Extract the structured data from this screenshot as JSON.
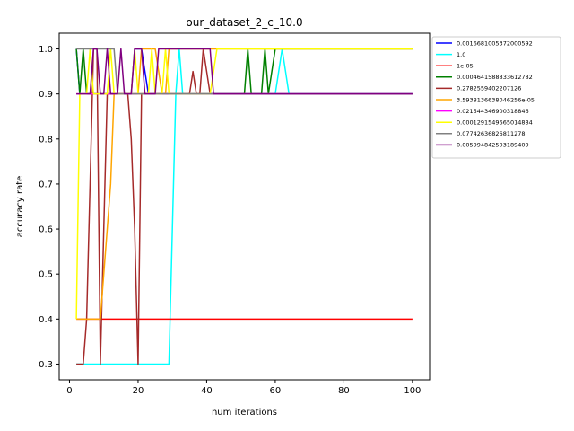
{
  "chart_data": {
    "type": "line",
    "title": "our_dataset_2_c_10.0",
    "xlabel": "num iterations",
    "ylabel": "accuracy rate",
    "xlim": [
      -3,
      105
    ],
    "ylim": [
      0.265,
      1.035
    ],
    "xticks": [
      0,
      20,
      40,
      60,
      80,
      100
    ],
    "yticks": [
      0.3,
      0.4,
      0.5,
      0.6,
      0.7,
      0.8,
      0.9,
      1.0
    ],
    "xtick_labels": [
      "0",
      "20",
      "40",
      "60",
      "80",
      "100"
    ],
    "ytick_labels": [
      "0.3",
      "0.4",
      "0.5",
      "0.6",
      "0.7",
      "0.8",
      "0.9",
      "1.0"
    ],
    "grid": false,
    "legend_position": "outside-right-top",
    "series": [
      {
        "name": "0.0016681005372000592",
        "color": "#0000ff",
        "points": [
          [
            2,
            1.0
          ],
          [
            3,
            0.9
          ],
          [
            4,
            0.9
          ],
          [
            5,
            0.9
          ],
          [
            6,
            0.9
          ],
          [
            7,
            0.9
          ],
          [
            8,
            0.9
          ],
          [
            9,
            0.9
          ],
          [
            10,
            0.9
          ],
          [
            11,
            0.9
          ],
          [
            12,
            0.9
          ],
          [
            13,
            0.9
          ],
          [
            14,
            0.9
          ],
          [
            15,
            0.9
          ],
          [
            16,
            0.9
          ],
          [
            17,
            0.9
          ],
          [
            18,
            0.9
          ],
          [
            19,
            1.0
          ],
          [
            20,
            1.0
          ],
          [
            21,
            1.0
          ],
          [
            22,
            0.95
          ],
          [
            23,
            0.9
          ],
          [
            24,
            0.9
          ],
          [
            25,
            0.9
          ],
          [
            26,
            0.9
          ],
          [
            27,
            0.9
          ],
          [
            28,
            0.9
          ],
          [
            29,
            0.9
          ],
          [
            30,
            0.9
          ],
          [
            35,
            0.9
          ],
          [
            40,
            0.9
          ],
          [
            45,
            0.9
          ],
          [
            50,
            0.9
          ],
          [
            60,
            0.9
          ],
          [
            70,
            0.9
          ],
          [
            80,
            0.9
          ],
          [
            90,
            0.9
          ],
          [
            100,
            0.9
          ]
        ]
      },
      {
        "name": "1.0",
        "color": "#00ffff",
        "points": [
          [
            2,
            0.3
          ],
          [
            3,
            0.3
          ],
          [
            5,
            0.3
          ],
          [
            10,
            0.3
          ],
          [
            15,
            0.3
          ],
          [
            20,
            0.3
          ],
          [
            25,
            0.3
          ],
          [
            29,
            0.3
          ],
          [
            30,
            0.6
          ],
          [
            31,
            0.9
          ],
          [
            32,
            1.0
          ],
          [
            33,
            0.9
          ],
          [
            34,
            0.9
          ],
          [
            40,
            0.9
          ],
          [
            45,
            0.9
          ],
          [
            50,
            0.9
          ],
          [
            55,
            0.9
          ],
          [
            60,
            0.9
          ],
          [
            61,
            0.95
          ],
          [
            62,
            1.0
          ],
          [
            63,
            0.95
          ],
          [
            64,
            0.9
          ],
          [
            70,
            0.9
          ],
          [
            80,
            0.9
          ],
          [
            90,
            0.9
          ],
          [
            100,
            0.9
          ]
        ]
      },
      {
        "name": "1e-05",
        "color": "#ff0000",
        "points": [
          [
            2,
            0.4
          ],
          [
            5,
            0.4
          ],
          [
            10,
            0.4
          ],
          [
            15,
            0.4
          ],
          [
            20,
            0.4
          ],
          [
            30,
            0.4
          ],
          [
            40,
            0.4
          ],
          [
            50,
            0.4
          ],
          [
            60,
            0.4
          ],
          [
            70,
            0.4
          ],
          [
            80,
            0.4
          ],
          [
            90,
            0.4
          ],
          [
            100,
            0.4
          ]
        ]
      },
      {
        "name": "0.0004641588833612782",
        "color": "#008000",
        "points": [
          [
            2,
            1.0
          ],
          [
            3,
            0.9
          ],
          [
            4,
            1.0
          ],
          [
            5,
            0.9
          ],
          [
            6,
            0.9
          ],
          [
            10,
            0.9
          ],
          [
            20,
            0.9
          ],
          [
            30,
            0.9
          ],
          [
            40,
            0.9
          ],
          [
            50,
            0.9
          ],
          [
            51,
            0.9
          ],
          [
            52,
            1.0
          ],
          [
            53,
            0.9
          ],
          [
            54,
            0.9
          ],
          [
            55,
            0.9
          ],
          [
            56,
            0.9
          ],
          [
            57,
            1.0
          ],
          [
            58,
            0.9
          ],
          [
            59,
            0.95
          ],
          [
            60,
            1.0
          ],
          [
            70,
            1.0
          ],
          [
            80,
            1.0
          ],
          [
            90,
            1.0
          ],
          [
            100,
            1.0
          ]
        ]
      },
      {
        "name": "0.2782559402207126",
        "color": "#a52a2a",
        "points": [
          [
            2,
            0.3
          ],
          [
            3,
            0.3
          ],
          [
            4,
            0.3
          ],
          [
            5,
            0.4
          ],
          [
            6,
            0.7
          ],
          [
            7,
            1.0
          ],
          [
            8,
            1.0
          ],
          [
            9,
            0.3
          ],
          [
            10,
            0.6
          ],
          [
            11,
            0.9
          ],
          [
            12,
            0.9
          ],
          [
            13,
            0.9
          ],
          [
            14,
            0.9
          ],
          [
            15,
            0.9
          ],
          [
            16,
            0.9
          ],
          [
            17,
            0.9
          ],
          [
            18,
            0.8
          ],
          [
            19,
            0.6
          ],
          [
            20,
            0.3
          ],
          [
            21,
            0.9
          ],
          [
            22,
            0.9
          ],
          [
            23,
            0.9
          ],
          [
            24,
            0.9
          ],
          [
            25,
            0.9
          ],
          [
            30,
            0.9
          ],
          [
            35,
            0.9
          ],
          [
            36,
            0.95
          ],
          [
            37,
            0.9
          ],
          [
            38,
            0.9
          ],
          [
            39,
            1.0
          ],
          [
            40,
            0.95
          ],
          [
            41,
            0.9
          ],
          [
            42,
            0.9
          ],
          [
            45,
            0.9
          ],
          [
            50,
            0.9
          ],
          [
            60,
            0.9
          ],
          [
            70,
            0.9
          ],
          [
            80,
            0.9
          ],
          [
            90,
            0.9
          ],
          [
            100,
            0.9
          ]
        ]
      },
      {
        "name": "3.5938136638046256e-05",
        "color": "#ffa500",
        "points": [
          [
            2,
            0.4
          ],
          [
            3,
            0.4
          ],
          [
            5,
            0.4
          ],
          [
            8,
            0.4
          ],
          [
            9,
            0.4
          ],
          [
            10,
            0.5
          ],
          [
            11,
            0.6
          ],
          [
            12,
            0.7
          ],
          [
            13,
            0.9
          ],
          [
            14,
            0.9
          ],
          [
            15,
            0.9
          ],
          [
            20,
            0.9
          ],
          [
            21,
            1.0
          ],
          [
            22,
            1.0
          ],
          [
            23,
            1.0
          ],
          [
            25,
            1.0
          ],
          [
            26,
            0.95
          ],
          [
            27,
            0.9
          ],
          [
            28,
            0.9
          ],
          [
            29,
            1.0
          ],
          [
            30,
            1.0
          ],
          [
            40,
            1.0
          ],
          [
            50,
            1.0
          ],
          [
            60,
            1.0
          ],
          [
            70,
            1.0
          ],
          [
            80,
            1.0
          ],
          [
            90,
            1.0
          ],
          [
            100,
            1.0
          ]
        ]
      },
      {
        "name": "0.021544346900318846",
        "color": "#ff00ff",
        "points": [
          [
            2,
            0.9
          ],
          [
            5,
            0.9
          ],
          [
            10,
            0.9
          ],
          [
            20,
            0.9
          ],
          [
            30,
            0.9
          ],
          [
            40,
            0.9
          ],
          [
            50,
            0.9
          ],
          [
            60,
            0.9
          ],
          [
            70,
            0.9
          ],
          [
            80,
            0.9
          ],
          [
            90,
            0.9
          ],
          [
            100,
            0.9
          ]
        ]
      },
      {
        "name": "0.0001291549665014884",
        "color": "#ffff00",
        "points": [
          [
            2,
            0.4
          ],
          [
            3,
            0.9
          ],
          [
            4,
            0.9
          ],
          [
            5,
            0.9
          ],
          [
            6,
            1.0
          ],
          [
            7,
            0.9
          ],
          [
            8,
            0.9
          ],
          [
            9,
            0.9
          ],
          [
            10,
            0.9
          ],
          [
            11,
            0.9
          ],
          [
            12,
            1.0
          ],
          [
            13,
            0.9
          ],
          [
            14,
            0.9
          ],
          [
            15,
            0.9
          ],
          [
            16,
            0.9
          ],
          [
            17,
            0.9
          ],
          [
            18,
            0.9
          ],
          [
            19,
            1.0
          ],
          [
            20,
            0.9
          ],
          [
            21,
            0.9
          ],
          [
            22,
            0.9
          ],
          [
            23,
            0.9
          ],
          [
            24,
            1.0
          ],
          [
            25,
            0.9
          ],
          [
            26,
            0.9
          ],
          [
            27,
            0.9
          ],
          [
            28,
            1.0
          ],
          [
            29,
            0.9
          ],
          [
            30,
            0.9
          ],
          [
            35,
            0.9
          ],
          [
            40,
            0.9
          ],
          [
            41,
            0.9
          ],
          [
            42,
            0.95
          ],
          [
            43,
            1.0
          ],
          [
            50,
            1.0
          ],
          [
            60,
            1.0
          ],
          [
            70,
            1.0
          ],
          [
            80,
            1.0
          ],
          [
            90,
            1.0
          ],
          [
            100,
            1.0
          ]
        ]
      },
      {
        "name": "0.07742636826811278",
        "color": "#808080",
        "points": [
          [
            2,
            1.0
          ],
          [
            5,
            1.0
          ],
          [
            10,
            1.0
          ],
          [
            13,
            1.0
          ],
          [
            14,
            0.9
          ],
          [
            20,
            0.9
          ],
          [
            25,
            0.9
          ],
          [
            30,
            0.9
          ],
          [
            35,
            0.9
          ],
          [
            40,
            0.9
          ],
          [
            50,
            0.9
          ],
          [
            60,
            0.9
          ],
          [
            70,
            0.9
          ],
          [
            80,
            0.9
          ],
          [
            90,
            0.9
          ],
          [
            100,
            0.9
          ]
        ]
      },
      {
        "name": "0.005994842503189409",
        "color": "#800080",
        "points": [
          [
            2,
            0.9
          ],
          [
            3,
            0.9
          ],
          [
            4,
            0.9
          ],
          [
            5,
            0.9
          ],
          [
            6,
            0.9
          ],
          [
            7,
            1.0
          ],
          [
            8,
            1.0
          ],
          [
            9,
            0.9
          ],
          [
            10,
            0.9
          ],
          [
            11,
            1.0
          ],
          [
            12,
            0.9
          ],
          [
            13,
            0.9
          ],
          [
            14,
            0.9
          ],
          [
            15,
            1.0
          ],
          [
            16,
            0.9
          ],
          [
            17,
            0.9
          ],
          [
            18,
            0.9
          ],
          [
            19,
            1.0
          ],
          [
            20,
            1.0
          ],
          [
            21,
            1.0
          ],
          [
            22,
            0.9
          ],
          [
            23,
            0.9
          ],
          [
            24,
            0.9
          ],
          [
            25,
            0.9
          ],
          [
            26,
            1.0
          ],
          [
            27,
            1.0
          ],
          [
            30,
            1.0
          ],
          [
            35,
            1.0
          ],
          [
            40,
            1.0
          ],
          [
            41,
            1.0
          ],
          [
            42,
            0.9
          ],
          [
            43,
            0.9
          ],
          [
            45,
            0.9
          ],
          [
            50,
            0.9
          ],
          [
            60,
            0.9
          ],
          [
            70,
            0.9
          ],
          [
            80,
            0.9
          ],
          [
            90,
            0.9
          ],
          [
            100,
            0.9
          ]
        ]
      }
    ]
  }
}
